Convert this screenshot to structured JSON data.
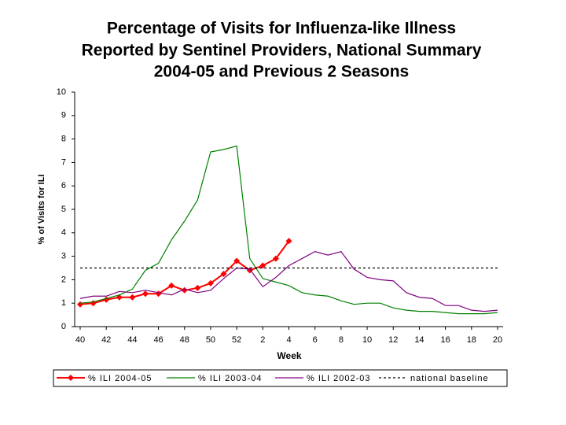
{
  "chart_data": {
    "type": "line",
    "title": [
      "Percentage of Visits for Influenza-like Illness",
      "Reported by Sentinel Providers, National Summary",
      "2004-05 and Previous 2 Seasons"
    ],
    "x_label": "Week",
    "y_label": "% of Visits for ILI",
    "categories": [
      "40",
      null,
      "42",
      null,
      "44",
      null,
      "46",
      null,
      "48",
      null,
      "50",
      null,
      "52",
      null,
      "2",
      null,
      "4",
      null,
      "6",
      null,
      "8",
      null,
      "10",
      null,
      "12",
      null,
      "14",
      null,
      "16",
      null,
      "18",
      null,
      "20"
    ],
    "ylim": [
      0,
      10
    ],
    "yticks": [
      0,
      1,
      2,
      3,
      4,
      5,
      6,
      7,
      8,
      9,
      10
    ],
    "grid": false,
    "legend": "bottom",
    "series": [
      {
        "name": "% ILI 2004-05",
        "color": "#ff0000",
        "markers": true,
        "values": [
          0.95,
          1.0,
          1.15,
          1.25,
          1.25,
          1.4,
          1.4,
          1.75,
          1.55,
          1.65,
          1.85,
          2.25,
          2.8,
          2.4,
          2.6,
          2.9,
          3.65,
          null,
          null,
          null,
          null,
          null,
          null,
          null,
          null,
          null,
          null,
          null,
          null,
          null,
          null,
          null,
          null
        ]
      },
      {
        "name": "% ILI 2003-04",
        "color": "#008000",
        "values": [
          1.0,
          1.05,
          1.2,
          1.35,
          1.6,
          2.4,
          2.7,
          3.7,
          4.5,
          5.4,
          7.45,
          7.55,
          7.7,
          2.9,
          2.05,
          1.9,
          1.75,
          1.45,
          1.35,
          1.3,
          1.1,
          0.95,
          1.0,
          1.0,
          0.8,
          0.7,
          0.65,
          0.65,
          0.6,
          0.55,
          0.55,
          0.55,
          0.6
        ]
      },
      {
        "name": "% ILI 2002-03",
        "color": "#800080",
        "values": [
          1.2,
          1.3,
          1.3,
          1.5,
          1.45,
          1.55,
          1.45,
          1.35,
          1.6,
          1.45,
          1.55,
          2.05,
          2.5,
          2.45,
          1.7,
          2.1,
          2.6,
          2.9,
          3.2,
          3.05,
          3.2,
          2.45,
          2.1,
          2.0,
          1.95,
          1.45,
          1.25,
          1.2,
          0.9,
          0.9,
          0.7,
          0.65,
          0.7
        ]
      },
      {
        "name": "national baseline",
        "color": "#000000",
        "dashed": true,
        "values": [
          2.5,
          2.5,
          2.5,
          2.5,
          2.5,
          2.5,
          2.5,
          2.5,
          2.5,
          2.5,
          2.5,
          2.5,
          2.5,
          2.5,
          2.5,
          2.5,
          2.5,
          2.5,
          2.5,
          2.5,
          2.5,
          2.5,
          2.5,
          2.5,
          2.5,
          2.5,
          2.5,
          2.5,
          2.5,
          2.5,
          2.5,
          2.5,
          2.5
        ]
      }
    ]
  }
}
